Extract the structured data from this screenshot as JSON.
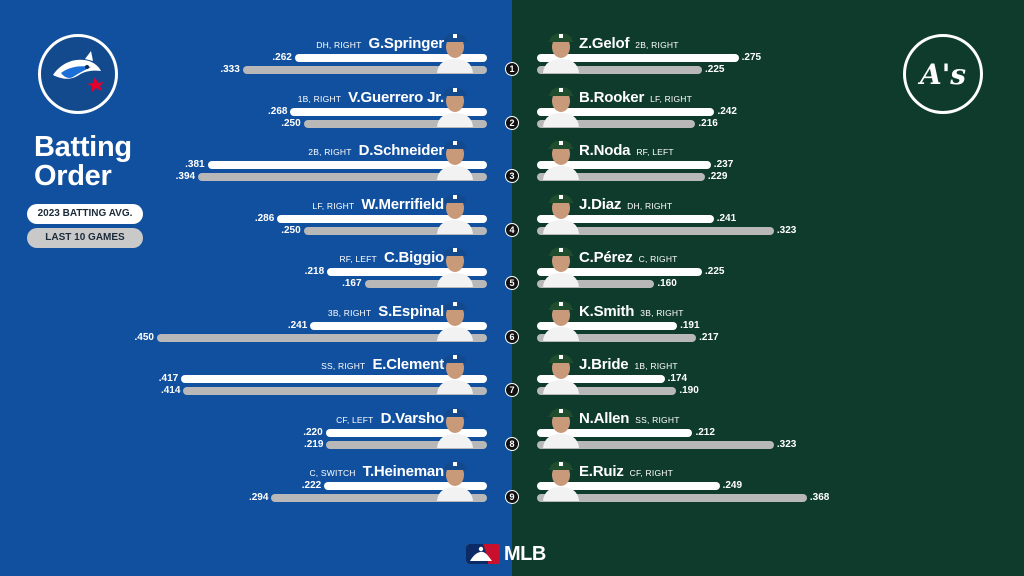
{
  "title_line1": "Batting",
  "title_line2": "Order",
  "legend": {
    "current_label": "2023 BATTING AVG.",
    "recent_label": "LAST 10 GAMES"
  },
  "footer": {
    "brand": "MLB"
  },
  "scale": {
    "max_value": 0.45
  },
  "colors": {
    "blue_jays_bg": "#11509e",
    "athletics_bg": "#0f3b2c",
    "bar_current": "#ffffff",
    "bar_recent": "#b8b8b8"
  },
  "blue_jays": {
    "logo": "blue-jays-logo",
    "players": [
      {
        "order": "1",
        "name": "G.Springer",
        "pos": "DH, RIGHT",
        "avg": ".262",
        "last10": ".333"
      },
      {
        "order": "2",
        "name": "V.Guerrero Jr.",
        "pos": "1B, RIGHT",
        "avg": ".268",
        "last10": ".250"
      },
      {
        "order": "3",
        "name": "D.Schneider",
        "pos": "2B, RIGHT",
        "avg": ".381",
        "last10": ".394"
      },
      {
        "order": "4",
        "name": "W.Merrifield",
        "pos": "LF, RIGHT",
        "avg": ".286",
        "last10": ".250"
      },
      {
        "order": "5",
        "name": "C.Biggio",
        "pos": "RF, LEFT",
        "avg": ".218",
        "last10": ".167"
      },
      {
        "order": "6",
        "name": "S.Espinal",
        "pos": "3B, RIGHT",
        "avg": ".241",
        "last10": ".450"
      },
      {
        "order": "7",
        "name": "E.Clement",
        "pos": "SS, RIGHT",
        "avg": ".417",
        "last10": ".414"
      },
      {
        "order": "8",
        "name": "D.Varsho",
        "pos": "CF, LEFT",
        "avg": ".220",
        "last10": ".219"
      },
      {
        "order": "9",
        "name": "T.Heineman",
        "pos": "C, SWITCH",
        "avg": ".222",
        "last10": ".294"
      }
    ]
  },
  "athletics": {
    "logo": "athletics-logo",
    "logo_text": "A's",
    "players": [
      {
        "order": "1",
        "name": "Z.Gelof",
        "pos": "2B, RIGHT",
        "avg": ".275",
        "last10": ".225"
      },
      {
        "order": "2",
        "name": "B.Rooker",
        "pos": "LF, RIGHT",
        "avg": ".242",
        "last10": ".216"
      },
      {
        "order": "3",
        "name": "R.Noda",
        "pos": "RF, LEFT",
        "avg": ".237",
        "last10": ".229"
      },
      {
        "order": "4",
        "name": "J.Diaz",
        "pos": "DH, RIGHT",
        "avg": ".241",
        "last10": ".323"
      },
      {
        "order": "5",
        "name": "C.Pérez",
        "pos": "C, RIGHT",
        "avg": ".225",
        "last10": ".160"
      },
      {
        "order": "6",
        "name": "K.Smith",
        "pos": "3B, RIGHT",
        "avg": ".191",
        "last10": ".217"
      },
      {
        "order": "7",
        "name": "J.Bride",
        "pos": "1B, RIGHT",
        "avg": ".174",
        "last10": ".190"
      },
      {
        "order": "8",
        "name": "N.Allen",
        "pos": "SS, RIGHT",
        "avg": ".212",
        "last10": ".323"
      },
      {
        "order": "9",
        "name": "E.Ruiz",
        "pos": "CF, RIGHT",
        "avg": ".249",
        "last10": ".368"
      }
    ]
  }
}
